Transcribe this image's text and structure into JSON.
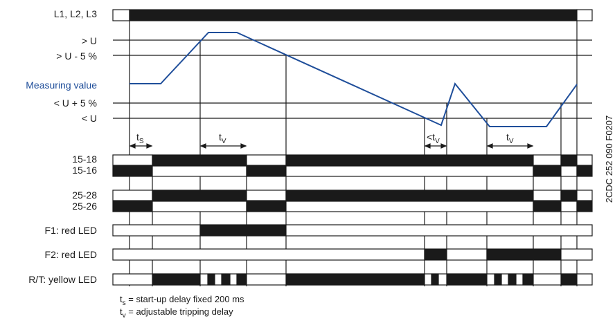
{
  "drawing_code": "2CDC 252 090 F0207",
  "rows": {
    "l123": "L1, L2, L3",
    "gt_u": "> U",
    "gt_u_5": "> U - 5 %",
    "measuring": "Measuring value",
    "lt_u_5": "< U + 5 %",
    "lt_u": "< U",
    "r1518": "15-18",
    "r1516": "15-16",
    "r2528": "25-28",
    "r2526": "25-26",
    "f1": "F1: red LED",
    "f2": "F2: red LED",
    "rt": "R/T: yellow LED"
  },
  "timing": {
    "ts_main": "t",
    "ts_sub": "S",
    "tv1_main": "t",
    "tv1_sub": "V",
    "tv2_main": "<t",
    "tv2_sub": "V",
    "tv3_main": "t",
    "tv3_sub": "V"
  },
  "legend": {
    "ts_main": "t",
    "ts_sub": "s",
    "ts_text": " = start-up delay fixed 200 ms",
    "tv_main": "t",
    "tv_sub": "v",
    "tv_text": " = adjustable tripping delay"
  },
  "colors": {
    "line": "#1a1a1a",
    "measure": "#1f4e9a"
  }
}
